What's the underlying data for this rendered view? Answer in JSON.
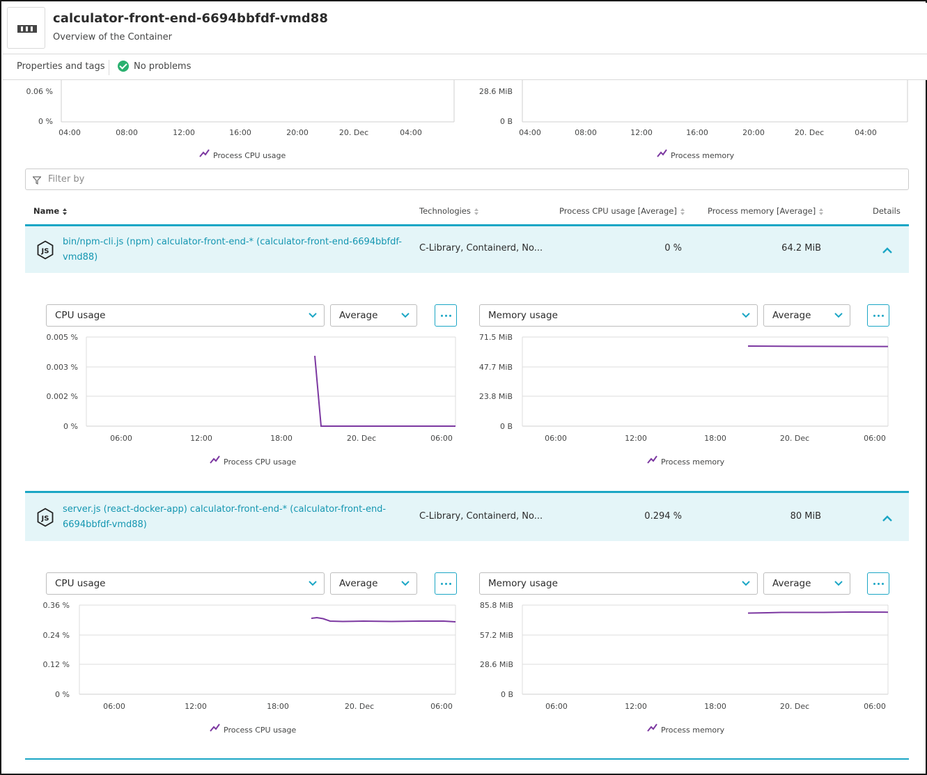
{
  "header": {
    "title": "calculator-front-end-6694bbfdf-vmd88",
    "subtitle": "Overview of the Container"
  },
  "tabs": {
    "properties": "Properties and tags",
    "problems": "No problems"
  },
  "overview": {
    "cpu": {
      "y_ticks": [
        "0.06 %",
        "0 %"
      ],
      "x_ticks": [
        "04:00",
        "08:00",
        "12:00",
        "16:00",
        "20:00",
        "20. Dec",
        "04:00"
      ],
      "legend": "Process CPU usage"
    },
    "memory": {
      "y_ticks": [
        "28.6 MiB",
        "0 B"
      ],
      "x_ticks": [
        "04:00",
        "08:00",
        "12:00",
        "16:00",
        "20:00",
        "20. Dec",
        "04:00"
      ],
      "legend": "Process memory"
    }
  },
  "filter": {
    "placeholder": "Filter by"
  },
  "table": {
    "columns": {
      "name": "Name",
      "technologies": "Technologies",
      "cpu": "Process CPU usage [Average]",
      "memory": "Process memory [Average]",
      "details": "Details"
    }
  },
  "processes": [
    {
      "name": "bin/npm-cli.js (npm) calculator-front-end-* (calculator-front-end-6694bbfdf-vmd88)",
      "technologies": "C-Library, Containerd, No...",
      "cpu": "0 %",
      "memory": "64.2 MiB",
      "cpu_chart": {
        "metric": "CPU usage",
        "agg": "Average",
        "y_ticks": [
          "0.005 %",
          "0.003 %",
          "0.002 %",
          "0 %"
        ],
        "x_ticks": [
          "06:00",
          "12:00",
          "18:00",
          "20. Dec",
          "06:00"
        ],
        "legend": "Process CPU usage"
      },
      "mem_chart": {
        "metric": "Memory usage",
        "agg": "Average",
        "y_ticks": [
          "71.5 MiB",
          "47.7 MiB",
          "23.8 MiB",
          "0 B"
        ],
        "x_ticks": [
          "06:00",
          "12:00",
          "18:00",
          "20. Dec",
          "06:00"
        ],
        "legend": "Process memory"
      }
    },
    {
      "name": "server.js (react-docker-app) calculator-front-end-* (calculator-front-end-6694bbfdf-vmd88)",
      "technologies": "C-Library, Containerd, No...",
      "cpu": "0.294 %",
      "memory": "80 MiB",
      "cpu_chart": {
        "metric": "CPU usage",
        "agg": "Average",
        "y_ticks": [
          "0.36 %",
          "0.24 %",
          "0.12 %",
          "0 %"
        ],
        "x_ticks": [
          "06:00",
          "12:00",
          "18:00",
          "20. Dec",
          "06:00"
        ],
        "legend": "Process CPU usage"
      },
      "mem_chart": {
        "metric": "Memory usage",
        "agg": "Average",
        "y_ticks": [
          "85.8 MiB",
          "57.2 MiB",
          "28.6 MiB",
          "0 B"
        ],
        "x_ticks": [
          "06:00",
          "12:00",
          "18:00",
          "20. Dec",
          "06:00"
        ],
        "legend": "Process memory"
      }
    }
  ],
  "colors": {
    "accent": "#1ba6c5",
    "link": "#1496b1",
    "series": "#7c38a1",
    "row_bg": "#e4f5f8",
    "ok": "#2ab06f"
  },
  "icons": {
    "container": "container-icon",
    "filter": "filter-icon",
    "status_ok": "check-circle-icon",
    "process": "nodejs-icon",
    "chevron_up": "chevron-up-icon",
    "chevron_down": "chevron-down-icon",
    "more": "more-icon",
    "legend": "line-chart-icon"
  }
}
